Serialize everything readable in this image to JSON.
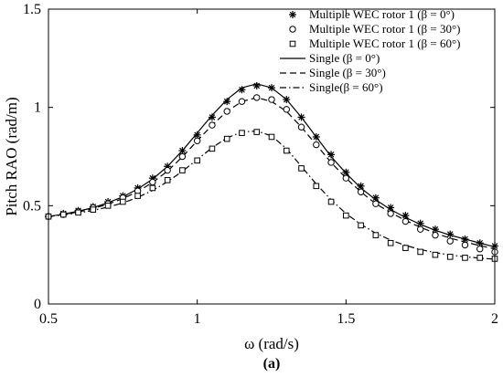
{
  "chart_data": {
    "type": "line",
    "xlabel": "ω (rad/s)",
    "ylabel": "Pitch RAO (rad/m)",
    "xlim": [
      0.5,
      2
    ],
    "ylim": [
      0,
      1.5
    ],
    "xticks": [
      0.5,
      1,
      1.5,
      2
    ],
    "xtick_labels": [
      "0.5",
      "1",
      "1.5",
      "2"
    ],
    "yticks": [
      0,
      0.5,
      1,
      1.5
    ],
    "ytick_labels": [
      "0",
      "0.5",
      "1",
      "1.5"
    ],
    "grid": false,
    "legend_position": "top-right",
    "caption": "(a)",
    "series": [
      {
        "name": "Multiple WEC rotor 1 (β = 0°)",
        "style": "marker-star",
        "x": [
          0.5,
          0.55,
          0.6,
          0.65,
          0.7,
          0.75,
          0.8,
          0.85,
          0.9,
          0.95,
          1.0,
          1.05,
          1.1,
          1.15,
          1.2,
          1.25,
          1.3,
          1.35,
          1.4,
          1.45,
          1.5,
          1.55,
          1.6,
          1.65,
          1.7,
          1.75,
          1.8,
          1.85,
          1.9,
          1.95,
          2.0
        ],
        "y": [
          0.445,
          0.46,
          0.475,
          0.495,
          0.52,
          0.55,
          0.59,
          0.64,
          0.7,
          0.78,
          0.86,
          0.95,
          1.03,
          1.09,
          1.11,
          1.1,
          1.04,
          0.95,
          0.85,
          0.76,
          0.67,
          0.6,
          0.54,
          0.49,
          0.45,
          0.41,
          0.38,
          0.355,
          0.33,
          0.31,
          0.295
        ]
      },
      {
        "name": "Multiple WEC rotor 1 (β = 30°)",
        "style": "marker-circle",
        "x": [
          0.5,
          0.55,
          0.6,
          0.65,
          0.7,
          0.75,
          0.8,
          0.85,
          0.9,
          0.95,
          1.0,
          1.05,
          1.1,
          1.15,
          1.2,
          1.25,
          1.3,
          1.35,
          1.4,
          1.45,
          1.5,
          1.55,
          1.6,
          1.65,
          1.7,
          1.75,
          1.8,
          1.85,
          1.9,
          1.95,
          2.0
        ],
        "y": [
          0.445,
          0.455,
          0.47,
          0.49,
          0.51,
          0.54,
          0.575,
          0.62,
          0.68,
          0.75,
          0.83,
          0.91,
          0.98,
          1.03,
          1.05,
          1.04,
          0.99,
          0.9,
          0.81,
          0.72,
          0.64,
          0.57,
          0.51,
          0.46,
          0.42,
          0.38,
          0.35,
          0.32,
          0.3,
          0.28,
          0.265
        ]
      },
      {
        "name": "Multiple WEC rotor 1 (β = 60°)",
        "style": "marker-square",
        "x": [
          0.5,
          0.55,
          0.6,
          0.65,
          0.7,
          0.75,
          0.8,
          0.85,
          0.9,
          0.95,
          1.0,
          1.05,
          1.1,
          1.15,
          1.2,
          1.25,
          1.3,
          1.35,
          1.4,
          1.45,
          1.5,
          1.55,
          1.6,
          1.65,
          1.7,
          1.75,
          1.8,
          1.85,
          1.9,
          1.95,
          2.0
        ],
        "y": [
          0.445,
          0.455,
          0.465,
          0.48,
          0.5,
          0.52,
          0.55,
          0.59,
          0.63,
          0.68,
          0.73,
          0.79,
          0.84,
          0.87,
          0.875,
          0.85,
          0.78,
          0.69,
          0.6,
          0.52,
          0.45,
          0.4,
          0.35,
          0.31,
          0.285,
          0.265,
          0.25,
          0.24,
          0.235,
          0.235,
          0.23
        ]
      },
      {
        "name": "Single (β = 0°)",
        "style": "solid",
        "x": [
          0.5,
          0.55,
          0.6,
          0.65,
          0.7,
          0.75,
          0.8,
          0.85,
          0.9,
          0.95,
          1.0,
          1.05,
          1.1,
          1.15,
          1.2,
          1.25,
          1.3,
          1.35,
          1.4,
          1.45,
          1.5,
          1.55,
          1.6,
          1.65,
          1.7,
          1.75,
          1.8,
          1.85,
          1.9,
          1.95,
          2.0
        ],
        "y": [
          0.445,
          0.457,
          0.472,
          0.49,
          0.515,
          0.545,
          0.585,
          0.635,
          0.7,
          0.78,
          0.87,
          0.96,
          1.04,
          1.1,
          1.12,
          1.1,
          1.04,
          0.95,
          0.85,
          0.75,
          0.665,
          0.59,
          0.53,
          0.48,
          0.44,
          0.405,
          0.375,
          0.35,
          0.33,
          0.31,
          0.29
        ]
      },
      {
        "name": "Single (β = 30°)",
        "style": "dashed",
        "x": [
          0.5,
          0.55,
          0.6,
          0.65,
          0.7,
          0.75,
          0.8,
          0.85,
          0.9,
          0.95,
          1.0,
          1.05,
          1.1,
          1.15,
          1.2,
          1.25,
          1.3,
          1.35,
          1.4,
          1.45,
          1.5,
          1.55,
          1.6,
          1.65,
          1.7,
          1.75,
          1.8,
          1.85,
          1.9,
          1.95,
          2.0
        ],
        "y": [
          0.445,
          0.455,
          0.468,
          0.485,
          0.508,
          0.536,
          0.572,
          0.618,
          0.676,
          0.748,
          0.83,
          0.91,
          0.98,
          1.03,
          1.05,
          1.03,
          0.98,
          0.9,
          0.81,
          0.72,
          0.64,
          0.57,
          0.51,
          0.465,
          0.425,
          0.39,
          0.36,
          0.335,
          0.315,
          0.297,
          0.28
        ]
      },
      {
        "name": "Single(β = 60°)",
        "style": "dashdot",
        "x": [
          0.5,
          0.55,
          0.6,
          0.65,
          0.7,
          0.75,
          0.8,
          0.85,
          0.9,
          0.95,
          1.0,
          1.05,
          1.1,
          1.15,
          1.2,
          1.25,
          1.3,
          1.35,
          1.4,
          1.45,
          1.5,
          1.55,
          1.6,
          1.65,
          1.7,
          1.75,
          1.8,
          1.85,
          1.9,
          1.95,
          2.0
        ],
        "y": [
          0.445,
          0.453,
          0.463,
          0.476,
          0.493,
          0.514,
          0.542,
          0.578,
          0.622,
          0.675,
          0.735,
          0.795,
          0.845,
          0.875,
          0.88,
          0.855,
          0.79,
          0.7,
          0.61,
          0.53,
          0.46,
          0.405,
          0.36,
          0.325,
          0.298,
          0.277,
          0.261,
          0.249,
          0.24,
          0.233,
          0.228
        ]
      }
    ]
  }
}
